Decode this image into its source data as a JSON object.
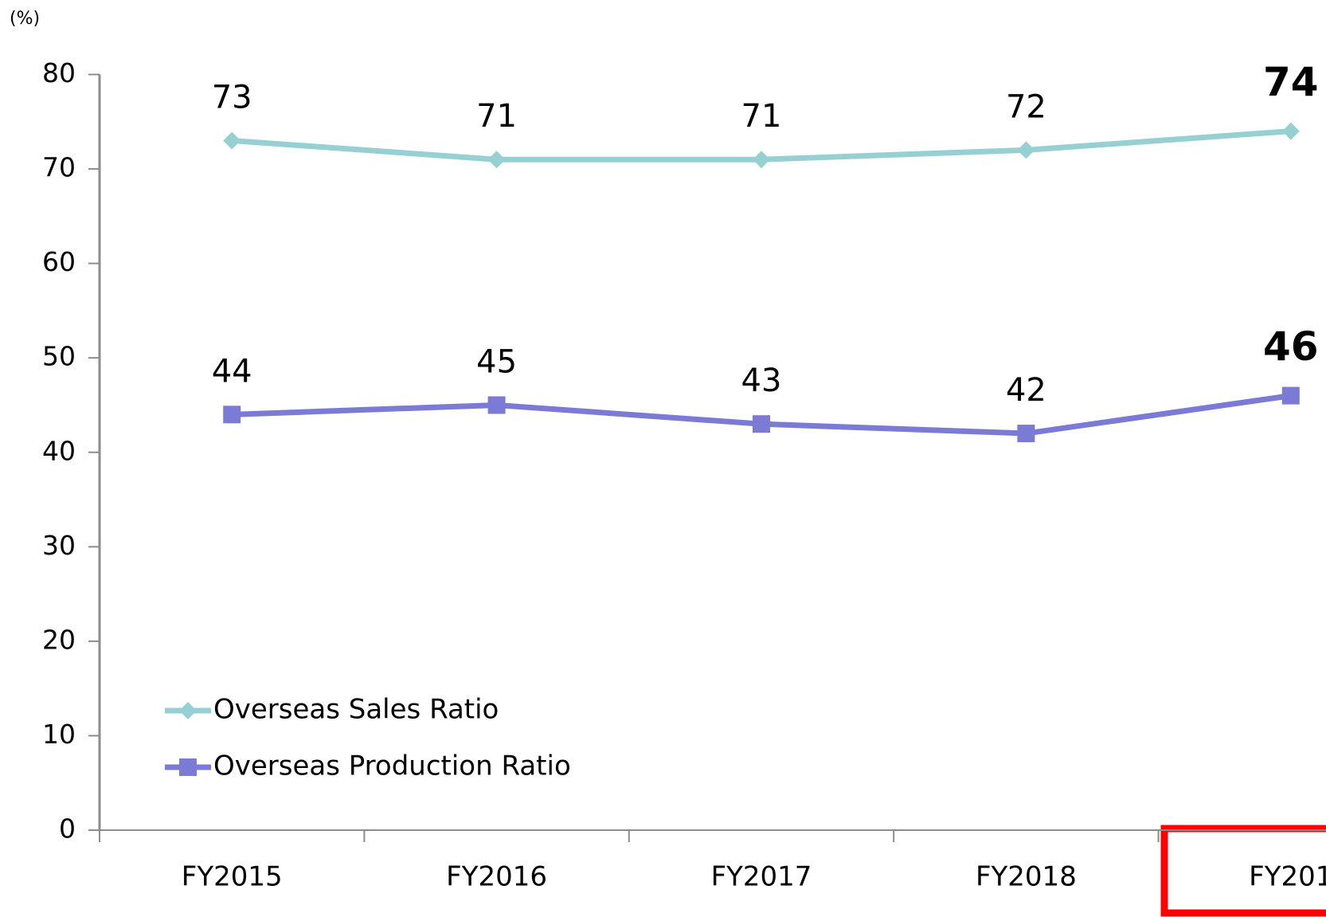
{
  "chart_data": {
    "type": "line",
    "unit": "(%)",
    "categories": [
      "FY2015",
      "FY2016",
      "FY2017",
      "FY2018",
      "FY201"
    ],
    "series": [
      {
        "name": "Overseas Sales Ratio",
        "color": "#96d0d2",
        "marker": "diamond",
        "values": [
          73,
          71,
          71,
          72,
          74
        ]
      },
      {
        "name": "Overseas Production Ratio",
        "color": "#7b7bd6",
        "marker": "square",
        "values": [
          44,
          45,
          43,
          42,
          46
        ]
      }
    ],
    "ylim": [
      0,
      80
    ],
    "yticks": [
      0,
      10,
      20,
      30,
      40,
      50,
      60,
      70,
      80
    ],
    "grid": false,
    "legend": "lower left"
  }
}
